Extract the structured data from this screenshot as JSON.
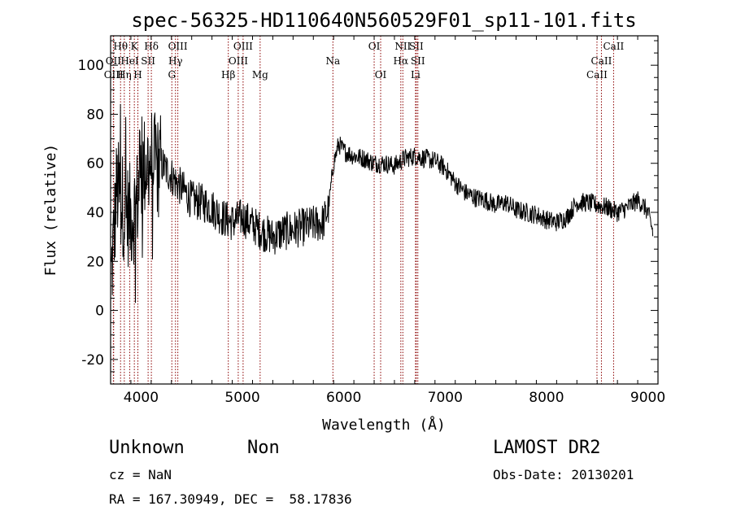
{
  "chart_data": {
    "type": "line",
    "title": "spec-56325-HD110640N560529F01_sp11-101.fits",
    "xlabel": "Wavelength (Å)",
    "ylabel": "Flux (relative)",
    "xlim": [
      3700,
      9100
    ],
    "ylim": [
      -30,
      112
    ],
    "xticks": [
      4000,
      5000,
      6000,
      7000,
      8000,
      9000
    ],
    "yticks": [
      -20,
      0,
      20,
      40,
      60,
      80,
      100
    ],
    "grid": false,
    "line_color": "#000000",
    "marker_color": "#8b0000",
    "spectrum": {
      "x": [
        3700,
        3740,
        3760,
        3800,
        3850,
        3900,
        3950,
        4000,
        4050,
        4100,
        4150,
        4200,
        4250,
        4300,
        4350,
        4400,
        4500,
        4600,
        4700,
        4800,
        4900,
        5000,
        5100,
        5200,
        5300,
        5400,
        5500,
        5600,
        5700,
        5800,
        5850,
        5900,
        5950,
        6000,
        6050,
        6100,
        6200,
        6300,
        6400,
        6500,
        6600,
        6700,
        6800,
        6900,
        7000,
        7100,
        7200,
        7300,
        7400,
        7500,
        7600,
        7700,
        7800,
        7900,
        8000,
        8100,
        8200,
        8300,
        8400,
        8500,
        8600,
        8700,
        8800,
        8900,
        8950,
        9000,
        9050
      ],
      "y": [
        10,
        35,
        50,
        45,
        40,
        38,
        42,
        55,
        60,
        62,
        58,
        60,
        57,
        55,
        52,
        50,
        45,
        44,
        42,
        38,
        36,
        38,
        35,
        32,
        30,
        32,
        33,
        34,
        35,
        36,
        42,
        60,
        68,
        65,
        64,
        63,
        62,
        60,
        60,
        59,
        62,
        63,
        62,
        61,
        58,
        52,
        48,
        46,
        45,
        43,
        44,
        41,
        40,
        39,
        37,
        36,
        38,
        44,
        44,
        43,
        42,
        40,
        42,
        45,
        43,
        40,
        32
      ]
    },
    "line_markers": [
      {
        "name": "Hθ",
        "wavelength": 3798,
        "row": 0
      },
      {
        "name": "OII",
        "wavelength": 3727,
        "row": 1
      },
      {
        "name": "OIII",
        "wavelength": 3730,
        "row": 2
      },
      {
        "name": "K",
        "wavelength": 3934,
        "row": 0
      },
      {
        "name": "H",
        "wavelength": 3969,
        "row": 2
      },
      {
        "name": "Hη",
        "wavelength": 3835,
        "row": 2
      },
      {
        "name": "HeI",
        "wavelength": 3889,
        "row": 1
      },
      {
        "name": "SII",
        "wavelength": 4070,
        "row": 1
      },
      {
        "name": "Hδ",
        "wavelength": 4102,
        "row": 0
      },
      {
        "name": "OIII",
        "wavelength": 4363,
        "row": 0
      },
      {
        "name": "Hγ",
        "wavelength": 4340,
        "row": 1
      },
      {
        "name": "G",
        "wavelength": 4304,
        "row": 2
      },
      {
        "name": "Hβ",
        "wavelength": 4861,
        "row": 2
      },
      {
        "name": "OIII",
        "wavelength": 5007,
        "row": 0
      },
      {
        "name": "OIII",
        "wavelength": 4959,
        "row": 1
      },
      {
        "name": "Mg",
        "wavelength": 5175,
        "row": 2
      },
      {
        "name": "Na",
        "wavelength": 5893,
        "row": 1
      },
      {
        "name": "OI",
        "wavelength": 6300,
        "row": 0
      },
      {
        "name": "OI",
        "wavelength": 6364,
        "row": 2
      },
      {
        "name": "NII",
        "wavelength": 6583,
        "row": 0
      },
      {
        "name": "Hα",
        "wavelength": 6563,
        "row": 1
      },
      {
        "name": "SII",
        "wavelength": 6716,
        "row": 0
      },
      {
        "name": "SII",
        "wavelength": 6731,
        "row": 1
      },
      {
        "name": "Li",
        "wavelength": 6708,
        "row": 2
      },
      {
        "name": "CaII",
        "wavelength": 8662,
        "row": 0
      },
      {
        "name": "CaII",
        "wavelength": 8542,
        "row": 1
      },
      {
        "name": "CaII",
        "wavelength": 8498,
        "row": 2
      }
    ]
  },
  "info": {
    "object_class": "Unknown",
    "object_subclass": "Non",
    "survey": "LAMOST DR2",
    "redshift": "cz = NaN",
    "obs_date": "Obs-Date: 20130201",
    "coordinates": "RA = 167.30949, DEC =  58.17836"
  }
}
